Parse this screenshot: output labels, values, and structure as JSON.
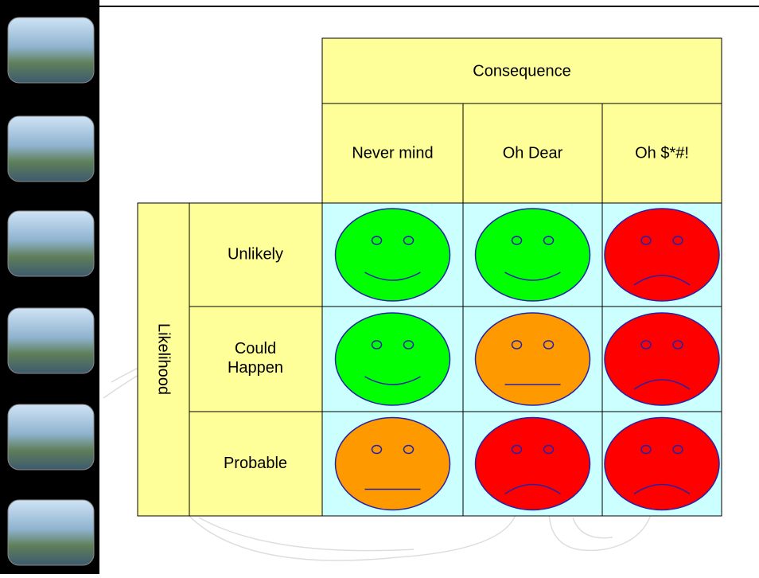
{
  "matrix": {
    "column_header": "Consequence",
    "columns": [
      "Never mind",
      "Oh Dear",
      "Oh $*#!"
    ],
    "row_header": "Likelihood",
    "rows": [
      "Unlikely",
      "Could Happen",
      "Probable"
    ]
  }
}
